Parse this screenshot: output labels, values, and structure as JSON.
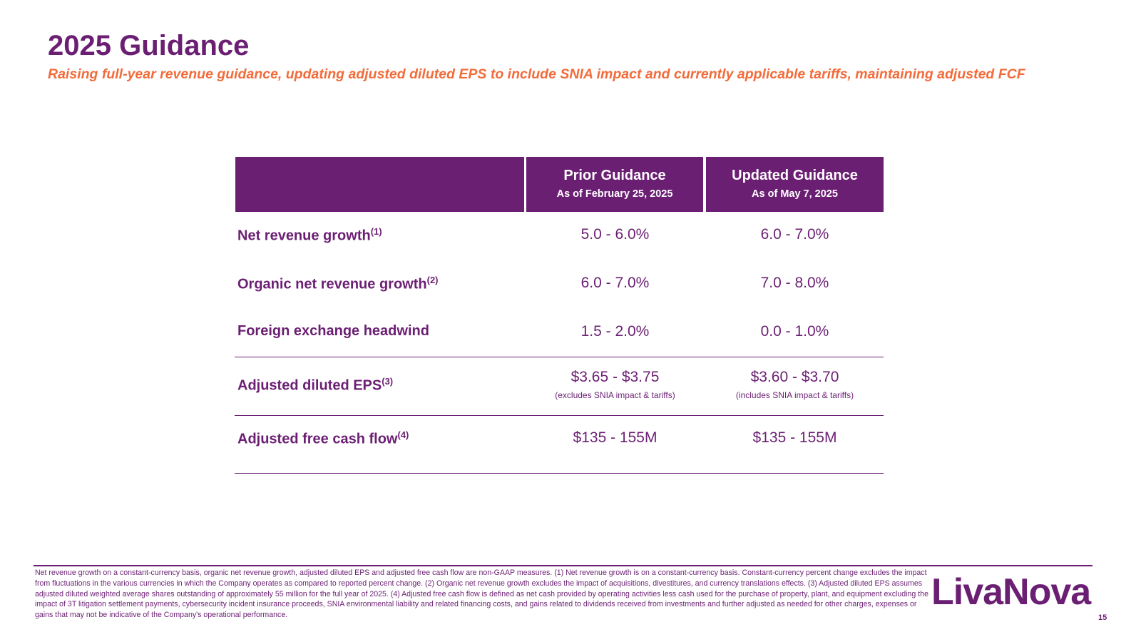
{
  "header": {
    "title": "2025 Guidance",
    "subtitle": "Raising full-year revenue guidance, updating adjusted diluted EPS to include SNIA impact and currently applicable tariffs, maintaining adjusted FCF"
  },
  "table": {
    "columns": [
      {
        "title": "Prior Guidance",
        "subtitle": "As of February 25, 2025"
      },
      {
        "title": "Updated Guidance",
        "subtitle": "As of May 7, 2025"
      }
    ],
    "rows": [
      {
        "label": "Net revenue growth",
        "footnote": "(1)",
        "values": [
          "5.0 - 6.0%",
          "6.0 - 7.0%"
        ]
      },
      {
        "label": "Organic net revenue growth",
        "footnote": "(2)",
        "values": [
          "6.0 - 7.0%",
          "7.0 - 8.0%"
        ]
      },
      {
        "label": "Foreign exchange headwind",
        "values": [
          "1.5 - 2.0%",
          "0.0 - 1.0%"
        ]
      },
      {
        "label": "Adjusted diluted EPS",
        "footnote": "(3)",
        "values": [
          "$3.65 - $3.75",
          "$3.60 - $3.70"
        ],
        "notes": [
          "(excludes SNIA impact & tariffs)",
          "(includes SNIA impact & tariffs)"
        ]
      },
      {
        "label": "Adjusted free cash flow",
        "footnote": "(4)",
        "values": [
          "$135 - 155M",
          "$135 - 155M"
        ]
      }
    ]
  },
  "footer": {
    "footnote": "Net revenue growth on a constant-currency basis, organic net revenue growth, adjusted diluted EPS and adjusted free cash flow are non-GAAP measures. (1) Net revenue growth is on a constant-currency basis. Constant-currency percent change excludes the impact from fluctuations in the various currencies in which the Company operates as compared to reported percent change. (2) Organic net revenue growth excludes the impact of acquisitions, divestitures, and currency translations effects. (3) Adjusted diluted EPS assumes adjusted diluted weighted average shares outstanding of approximately 55 million for the full year of 2025. (4) Adjusted free cash flow is defined as net cash provided by operating activities less cash used for the purchase of property, plant, and equipment excluding the impact of 3T litigation settlement payments, cybersecurity incident insurance proceeds, SNIA environmental liability and related financing costs, and gains related to dividends received from investments and further adjusted as needed for other charges, expenses or gains that may not be indicative of the Company's operational performance.",
    "logo": "LivaNova",
    "page_number": "15"
  }
}
